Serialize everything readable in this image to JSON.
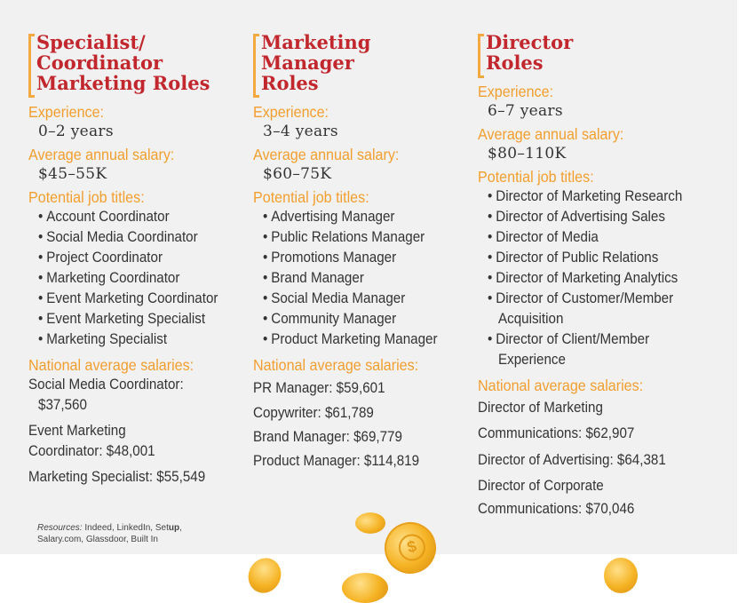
{
  "columns": [
    {
      "title_lines": [
        "Specialist/",
        "Coordinator",
        "Marketing Roles"
      ],
      "experience_label": "Experience:",
      "experience": "0–2 years",
      "salary_label": "Average annual salary:",
      "salary": "$45–55K",
      "titles_label": "Potential job titles:",
      "job_titles": [
        "Account Coordinator",
        "Social Media Coordinator",
        "Project Coordinator",
        "Marketing Coordinator",
        "Event Marketing Coordinator",
        "Event Marketing Specialist",
        "Marketing Specialist"
      ],
      "national_label": "National average salaries:",
      "national": [
        "Social Media Coordinator:",
        "$37,560",
        "Event Marketing",
        "Coordinator:  $48,001",
        "Marketing Specialist: $55,549"
      ]
    },
    {
      "title_lines": [
        "Marketing",
        "Manager",
        "Roles"
      ],
      "experience_label": "Experience:",
      "experience": "3–4 years",
      "salary_label": "Average annual salary:",
      "salary": "$60–75K",
      "titles_label": "Potential job titles:",
      "job_titles": [
        "Advertising Manager",
        "Public Relations Manager",
        "Promotions Manager",
        "Brand Manager",
        "Social Media Manager",
        "Community Manager",
        "Product Marketing Manager"
      ],
      "national_label": "National average salaries:",
      "national": [
        "PR Manager: $59,601",
        "Copywriter: $61,789",
        "Brand Manager: $69,779",
        "Product Manager: $114,819"
      ]
    },
    {
      "title_lines": [
        "Director",
        "Roles"
      ],
      "experience_label": "Experience:",
      "experience": "6–7 years",
      "salary_label": "Average annual salary:",
      "salary": "$80–110K",
      "titles_label": "Potential job titles:",
      "job_titles": [
        "Director of Marketing Research",
        "Director of Advertising Sales",
        "Director of Media",
        "Director of Public Relations",
        "Director of Marketing Analytics",
        "Director of Customer/Member",
        "Acquisition",
        "Director of Client/Member",
        "Experience"
      ],
      "national_label": "National average salaries:",
      "national": [
        "Director of Marketing",
        "Communications: $62,907",
        "Director of Advertising: $64,381",
        "Director of Corporate",
        "Communications: $70,046"
      ]
    }
  ],
  "resources": {
    "prefix": "Resources:",
    "line1_text": " Indeed, LinkedIn, Set",
    "line1_bold": "up",
    "line1_end": ",",
    "line2": "Salary.com, Glassdoor, Built In"
  },
  "bullet": "•",
  "colors": {
    "accent_red": "#c1272d",
    "accent_orange": "#f29e2e",
    "panel": "#f1f1f1",
    "coin": "#f5b324"
  }
}
